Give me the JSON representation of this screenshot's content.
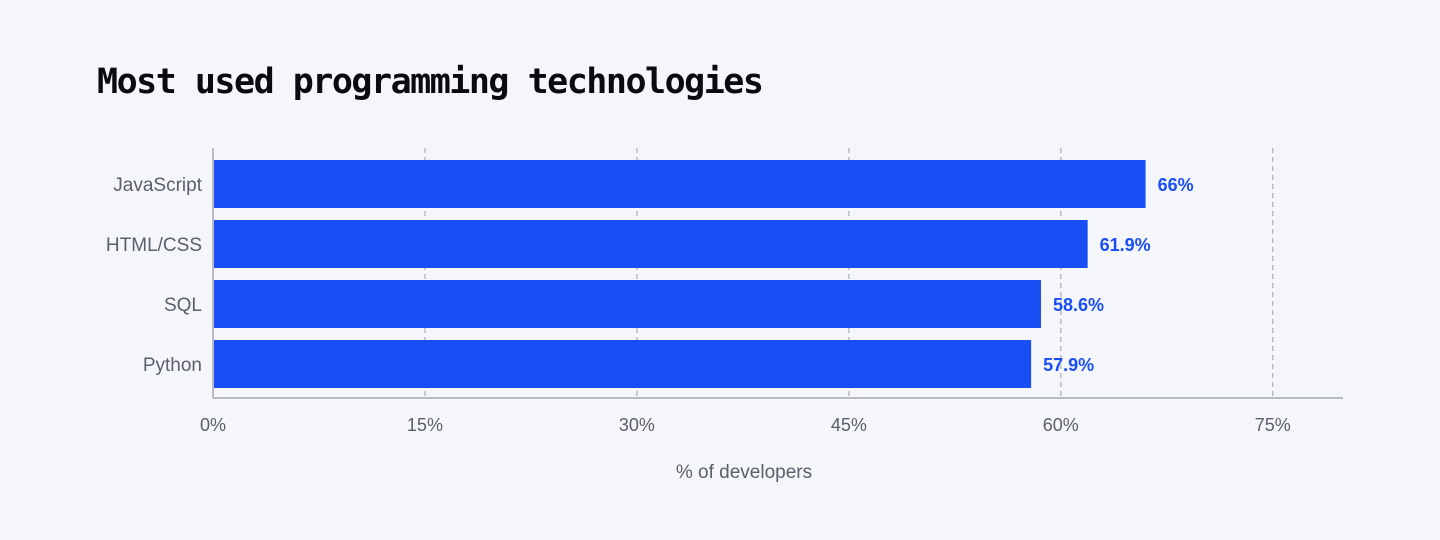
{
  "chart_data": {
    "type": "bar",
    "orientation": "horizontal",
    "title": "Most used programming technologies",
    "categories": [
      "JavaScript",
      "HTML/CSS",
      "SQL",
      "Python"
    ],
    "values": [
      66,
      61.9,
      58.6,
      57.9
    ],
    "value_labels": [
      "66%",
      "61.9%",
      "58.6%",
      "57.9%"
    ],
    "xlabel": "% of developers",
    "ylabel": "",
    "xlim": [
      0,
      80
    ],
    "xticks": [
      0,
      15,
      30,
      45,
      60,
      75
    ],
    "xtick_labels": [
      "0%",
      "15%",
      "30%",
      "45%",
      "60%",
      "75%"
    ],
    "grid": "vertical dashed",
    "legend": "none",
    "colors": {
      "bar": "#1a4ef5",
      "value_label": "#1a4ef5",
      "grid": "#b9bcc6",
      "axis": "#b9bcc6",
      "text": "#5b5f6b",
      "title": "#0b0b0f",
      "background": "#f5f6fa"
    }
  }
}
